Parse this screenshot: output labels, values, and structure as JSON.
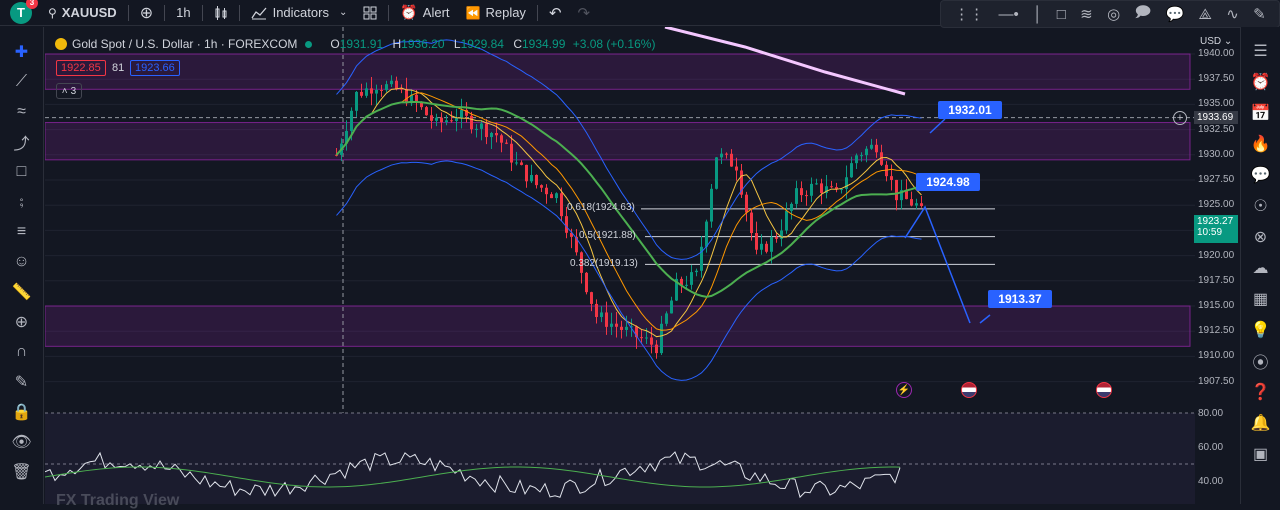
{
  "topbar": {
    "avatar_letter": "T",
    "avatar_badge": "3",
    "symbol": "XAUUSD",
    "interval": "1h",
    "indicators_label": "Indicators",
    "alert_label": "Alert",
    "replay_label": "Replay"
  },
  "legend": {
    "title": "Gold Spot / U.S. Dollar · 1h · FOREXCOM",
    "open": "1931.91",
    "high": "1936.20",
    "low": "1929.84",
    "close": "1934.99",
    "change": "+3.08 (+0.16%)",
    "bid": "1922.85",
    "spread": "81",
    "ask": "1923.66",
    "collapsed_count": "3"
  },
  "axis": {
    "currency": "USD",
    "ticks": [
      "1940.00",
      "1937.50",
      "1935.00",
      "1932.50",
      "1930.00",
      "1927.50",
      "1925.00",
      "1922.50",
      "1920.00",
      "1917.50",
      "1915.00",
      "1912.50",
      "1910.00",
      "1907.50"
    ],
    "crosshair_price": "1933.69",
    "last_price": "1923.27",
    "countdown": "10:59",
    "rsi_ticks": [
      "80.00",
      "60.00",
      "40.00"
    ]
  },
  "annotations": {
    "target_top": "1932.01",
    "target_mid": "1924.98",
    "target_bottom": "1913.37",
    "fib_618": "0.618(1924.63)",
    "fib_5": "0.5(1921.88)",
    "fib_382": "0.382(1919.13)"
  },
  "watermark": "FX Trading View",
  "colors": {
    "up": "#089981",
    "down": "#f23645",
    "accent": "#2962ff",
    "zone": "#9c27b0",
    "background": "#131722"
  }
}
